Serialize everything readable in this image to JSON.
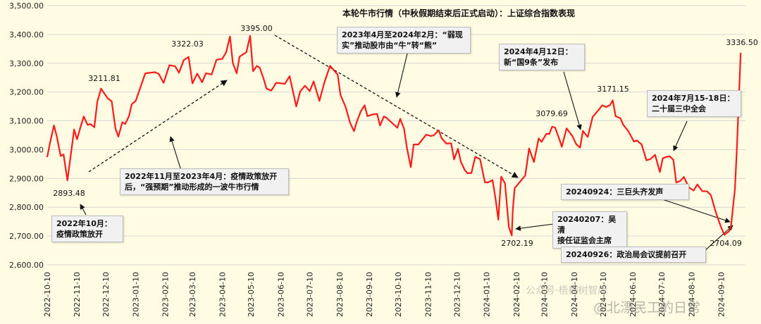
{
  "chart_data": {
    "type": "line",
    "title": "本轮牛市行情（中秋假期结束后正式启动）：上证综合指数表现",
    "ylim": [
      2600,
      3500
    ],
    "y_ticks": [
      "2,600.00",
      "2,700.00",
      "2,800.00",
      "2,900.00",
      "3,000.00",
      "3,100.00",
      "3,200.00",
      "3,300.00",
      "3,400.00",
      "3,500.00"
    ],
    "x_ticks": [
      "2022-10-10",
      "2022-11-10",
      "2022-12-10",
      "2023-01-10",
      "2023-02-10",
      "2023-03-10",
      "2023-04-10",
      "2023-05-10",
      "2023-06-10",
      "2023-07-10",
      "2023-08-10",
      "2023-09-10",
      "2023-10-10",
      "2023-11-10",
      "2023-12-10",
      "2024-01-10",
      "2024-02-10",
      "2024-03-10",
      "2024-04-10",
      "2024-05-10",
      "2024-06-10",
      "2024-07-10",
      "2024-08-10",
      "2024-09-10"
    ],
    "gridlines": "horizontal",
    "line_color": "#ff1a1a",
    "series": [
      {
        "values": [
          [
            "2022-10-10",
            2974
          ],
          [
            "2022-10-13",
            3025
          ],
          [
            "2022-10-17",
            3084
          ],
          [
            "2022-10-20",
            3045
          ],
          [
            "2022-10-24",
            2978
          ],
          [
            "2022-10-27",
            2983
          ],
          [
            "2022-10-31",
            2893.48
          ],
          [
            "2022-11-03",
            2969
          ],
          [
            "2022-11-07",
            3070
          ],
          [
            "2022-11-10",
            3036
          ],
          [
            "2022-11-14",
            3083
          ],
          [
            "2022-11-17",
            3115
          ],
          [
            "2022-11-21",
            3086
          ],
          [
            "2022-11-24",
            3089
          ],
          [
            "2022-11-28",
            3078
          ],
          [
            "2022-12-01",
            3165
          ],
          [
            "2022-12-05",
            3211.81
          ],
          [
            "2022-12-08",
            3197
          ],
          [
            "2022-12-12",
            3178
          ],
          [
            "2022-12-16",
            3168
          ],
          [
            "2022-12-20",
            3073
          ],
          [
            "2022-12-23",
            3045
          ],
          [
            "2022-12-27",
            3095
          ],
          [
            "2022-12-30",
            3089
          ],
          [
            "2023-01-03",
            3116
          ],
          [
            "2023-01-06",
            3158
          ],
          [
            "2023-01-10",
            3169
          ],
          [
            "2023-01-16",
            3227
          ],
          [
            "2023-01-20",
            3265
          ],
          [
            "2023-01-30",
            3269
          ],
          [
            "2023-02-03",
            3263
          ],
          [
            "2023-02-08",
            3232
          ],
          [
            "2023-02-14",
            3293
          ],
          [
            "2023-02-20",
            3290
          ],
          [
            "2023-02-24",
            3267
          ],
          [
            "2023-03-01",
            3311
          ],
          [
            "2023-03-06",
            3322.03
          ],
          [
            "2023-03-10",
            3230
          ],
          [
            "2023-03-15",
            3264
          ],
          [
            "2023-03-20",
            3234
          ],
          [
            "2023-03-24",
            3265
          ],
          [
            "2023-03-30",
            3261
          ],
          [
            "2023-04-04",
            3312
          ],
          [
            "2023-04-10",
            3315
          ],
          [
            "2023-04-14",
            3338
          ],
          [
            "2023-04-18",
            3393
          ],
          [
            "2023-04-21",
            3301
          ],
          [
            "2023-04-25",
            3265
          ],
          [
            "2023-04-28",
            3323
          ],
          [
            "2023-05-05",
            3338
          ],
          [
            "2023-05-09",
            3395.0
          ],
          [
            "2023-05-12",
            3272
          ],
          [
            "2023-05-16",
            3291
          ],
          [
            "2023-05-19",
            3284
          ],
          [
            "2023-05-23",
            3246
          ],
          [
            "2023-05-26",
            3212
          ],
          [
            "2023-05-31",
            3205
          ],
          [
            "2023-06-05",
            3232
          ],
          [
            "2023-06-09",
            3231
          ],
          [
            "2023-06-14",
            3228
          ],
          [
            "2023-06-19",
            3255
          ],
          [
            "2023-06-26",
            3150
          ],
          [
            "2023-06-30",
            3202
          ],
          [
            "2023-07-05",
            3222
          ],
          [
            "2023-07-10",
            3203
          ],
          [
            "2023-07-14",
            3237
          ],
          [
            "2023-07-20",
            3169
          ],
          [
            "2023-07-25",
            3231
          ],
          [
            "2023-07-31",
            3291
          ],
          [
            "2023-08-03",
            3280
          ],
          [
            "2023-08-08",
            3260
          ],
          [
            "2023-08-11",
            3189
          ],
          [
            "2023-08-16",
            3150
          ],
          [
            "2023-08-21",
            3092
          ],
          [
            "2023-08-25",
            3064
          ],
          [
            "2023-08-28",
            3098
          ],
          [
            "2023-09-01",
            3133
          ],
          [
            "2023-09-05",
            3154
          ],
          [
            "2023-09-08",
            3116
          ],
          [
            "2023-09-13",
            3122
          ],
          [
            "2023-09-18",
            3124
          ],
          [
            "2023-09-21",
            3084
          ],
          [
            "2023-09-25",
            3115
          ],
          [
            "2023-09-28",
            3110
          ],
          [
            "2023-10-09",
            3076
          ],
          [
            "2023-10-12",
            3107
          ],
          [
            "2023-10-16",
            3073
          ],
          [
            "2023-10-19",
            3006
          ],
          [
            "2023-10-23",
            2939
          ],
          [
            "2023-10-26",
            3018
          ],
          [
            "2023-10-31",
            3018
          ],
          [
            "2023-11-03",
            3031
          ],
          [
            "2023-11-08",
            3052
          ],
          [
            "2023-11-13",
            3047
          ],
          [
            "2023-11-16",
            3050
          ],
          [
            "2023-11-21",
            3067
          ],
          [
            "2023-11-24",
            3040
          ],
          [
            "2023-11-29",
            3021
          ],
          [
            "2023-12-04",
            3022
          ],
          [
            "2023-12-07",
            2966
          ],
          [
            "2023-12-11",
            3003
          ],
          [
            "2023-12-14",
            2958
          ],
          [
            "2023-12-18",
            2930
          ],
          [
            "2023-12-21",
            2918
          ],
          [
            "2023-12-25",
            2919
          ],
          [
            "2023-12-29",
            2975
          ],
          [
            "2024-01-03",
            2967
          ],
          [
            "2024-01-08",
            2887
          ],
          [
            "2024-01-11",
            2886
          ],
          [
            "2024-01-16",
            2894
          ],
          [
            "2024-01-19",
            2833
          ],
          [
            "2024-01-22",
            2757
          ],
          [
            "2024-01-25",
            2906
          ],
          [
            "2024-01-29",
            2883
          ],
          [
            "2024-02-02",
            2730
          ],
          [
            "2024-02-05",
            2702.19
          ],
          [
            "2024-02-06",
            2789
          ],
          [
            "2024-02-08",
            2866
          ],
          [
            "2024-02-19",
            2910
          ],
          [
            "2024-02-23",
            3004
          ],
          [
            "2024-02-28",
            2957
          ],
          [
            "2024-03-04",
            3039
          ],
          [
            "2024-03-07",
            3027
          ],
          [
            "2024-03-12",
            3055
          ],
          [
            "2024-03-15",
            3054
          ],
          [
            "2024-03-18",
            3079.69
          ],
          [
            "2024-03-21",
            3077
          ],
          [
            "2024-03-26",
            3031
          ],
          [
            "2024-03-28",
            3010
          ],
          [
            "2024-04-02",
            3074
          ],
          [
            "2024-04-08",
            3047
          ],
          [
            "2024-04-12",
            3019
          ],
          [
            "2024-04-16",
            3007
          ],
          [
            "2024-04-19",
            3065
          ],
          [
            "2024-04-24",
            3044
          ],
          [
            "2024-04-29",
            3113
          ],
          [
            "2024-05-06",
            3141
          ],
          [
            "2024-05-09",
            3154
          ],
          [
            "2024-05-13",
            3148
          ],
          [
            "2024-05-17",
            3154
          ],
          [
            "2024-05-20",
            3171.15
          ],
          [
            "2024-05-23",
            3116
          ],
          [
            "2024-05-28",
            3109
          ],
          [
            "2024-05-31",
            3086
          ],
          [
            "2024-06-05",
            3065
          ],
          [
            "2024-06-11",
            3028
          ],
          [
            "2024-06-14",
            3032
          ],
          [
            "2024-06-19",
            3018
          ],
          [
            "2024-06-24",
            2963
          ],
          [
            "2024-06-28",
            2967
          ],
          [
            "2024-07-03",
            2982
          ],
          [
            "2024-07-08",
            2922
          ],
          [
            "2024-07-11",
            2970
          ],
          [
            "2024-07-15",
            2975
          ],
          [
            "2024-07-18",
            2977
          ],
          [
            "2024-07-22",
            2965
          ],
          [
            "2024-07-25",
            2886
          ],
          [
            "2024-07-29",
            2891
          ],
          [
            "2024-08-02",
            2905
          ],
          [
            "2024-08-07",
            2869
          ],
          [
            "2024-08-12",
            2858
          ],
          [
            "2024-08-16",
            2879
          ],
          [
            "2024-08-21",
            2856
          ],
          [
            "2024-08-26",
            2855
          ],
          [
            "2024-08-30",
            2842
          ],
          [
            "2024-09-04",
            2784
          ],
          [
            "2024-09-09",
            2736
          ],
          [
            "2024-09-13",
            2704.09
          ],
          [
            "2024-09-18",
            2717
          ],
          [
            "2024-09-20",
            2736
          ],
          [
            "2024-09-24",
            2863
          ],
          [
            "2024-09-26",
            3000
          ],
          [
            "2024-09-30",
            3336.5
          ]
        ]
      }
    ],
    "point_labels": [
      {
        "text": "2893.48"
      },
      {
        "text": "3211.81"
      },
      {
        "text": "3322.03"
      },
      {
        "text": "3395.00"
      },
      {
        "text": "2702.19"
      },
      {
        "text": "3079.69"
      },
      {
        "text": "3171.15"
      },
      {
        "text": "2704.09"
      },
      {
        "text": "3336.50"
      }
    ]
  },
  "annotations": [
    {
      "id": "oct2022",
      "lines": [
        "2022年10月：",
        "疫情政策放开"
      ]
    },
    {
      "id": "nov2022",
      "lines": [
        "2022年11月至2023年4月：疫情政策放开",
        "后，“强预期”推动形成的一波牛市行情"
      ]
    },
    {
      "id": "apr2023",
      "lines": [
        "2023年4月至2024年2月：“弱现",
        "实”推动股市由“牛”转“熊”"
      ]
    },
    {
      "id": "apr2024",
      "lines": [
        "2024年4月12日：",
        "新“国9条”发布"
      ]
    },
    {
      "id": "jul2024",
      "lines": [
        "2024年7月15-18日：",
        "二十届三中全会"
      ]
    },
    {
      "id": "sep24",
      "lines": [
        "20240924：三巨头齐发声"
      ]
    },
    {
      "id": "feb07",
      "lines": [
        "20240207：吴清",
        "接任证监会主席"
      ]
    },
    {
      "id": "sep26",
      "lines": [
        "20240926：政治局会议提前召开"
      ]
    }
  ],
  "watermarks": {
    "main": "@北漂民工的日常",
    "faint": "公众号·梧桐树智库"
  }
}
